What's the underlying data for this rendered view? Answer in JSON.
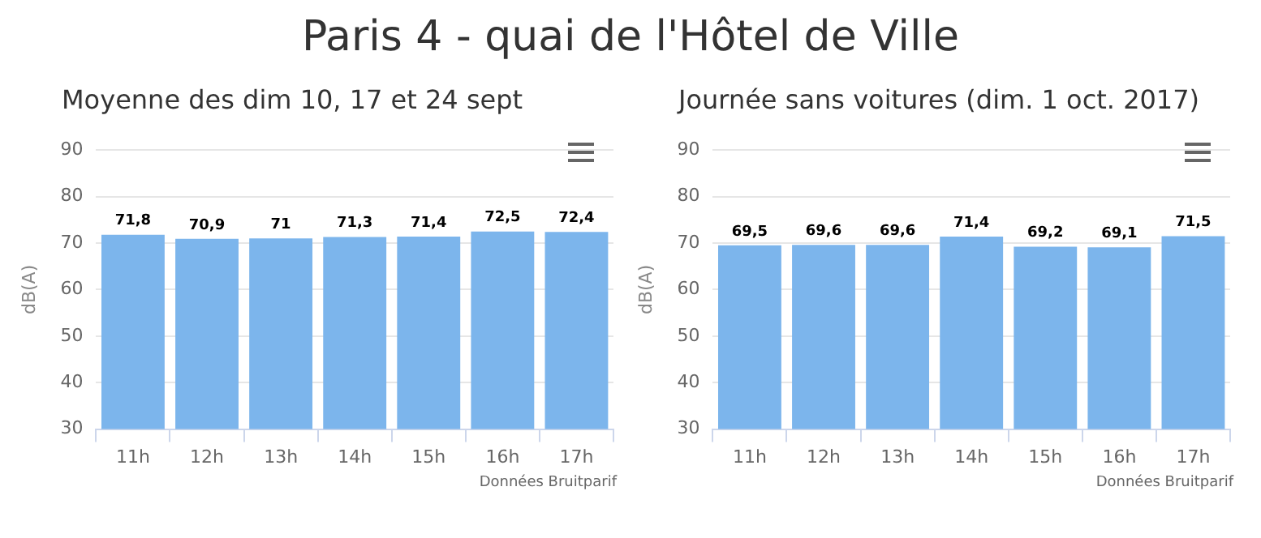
{
  "chart_data": [
    {
      "type": "bar",
      "title": "Paris 4 - quai de l'Hôtel de Ville",
      "subtitle": "Moyenne des dim 10, 17 et 24 sept",
      "ylabel": "dB(A)",
      "categories": [
        "11h",
        "12h",
        "13h",
        "14h",
        "15h",
        "16h",
        "17h"
      ],
      "values": [
        71.8,
        70.9,
        71,
        71.3,
        71.4,
        72.5,
        72.4
      ],
      "value_labels": [
        "71,8",
        "70,9",
        "71",
        "71,3",
        "71,4",
        "72,5",
        "72,4"
      ],
      "color": "#7cb5ec",
      "ylim": [
        30,
        90
      ],
      "yticks": [
        30,
        40,
        50,
        60,
        70,
        80,
        90
      ],
      "grid": "y",
      "annotations": [
        "Données Bruitparif"
      ]
    },
    {
      "type": "bar",
      "subtitle": "Journée sans voitures (dim. 1 oct. 2017)",
      "ylabel": "dB(A)",
      "categories": [
        "11h",
        "12h",
        "13h",
        "14h",
        "15h",
        "16h",
        "17h"
      ],
      "values": [
        69.5,
        69.6,
        69.6,
        71.4,
        69.2,
        69.1,
        71.5
      ],
      "value_labels": [
        "69,5",
        "69,6",
        "69,6",
        "71,4",
        "69,2",
        "69,1",
        "71,5"
      ],
      "color": "#7cb5ec",
      "ylim": [
        30,
        90
      ],
      "yticks": [
        30,
        40,
        50,
        60,
        70,
        80,
        90
      ],
      "grid": "y",
      "annotations": [
        "Données Bruitparif"
      ]
    }
  ]
}
